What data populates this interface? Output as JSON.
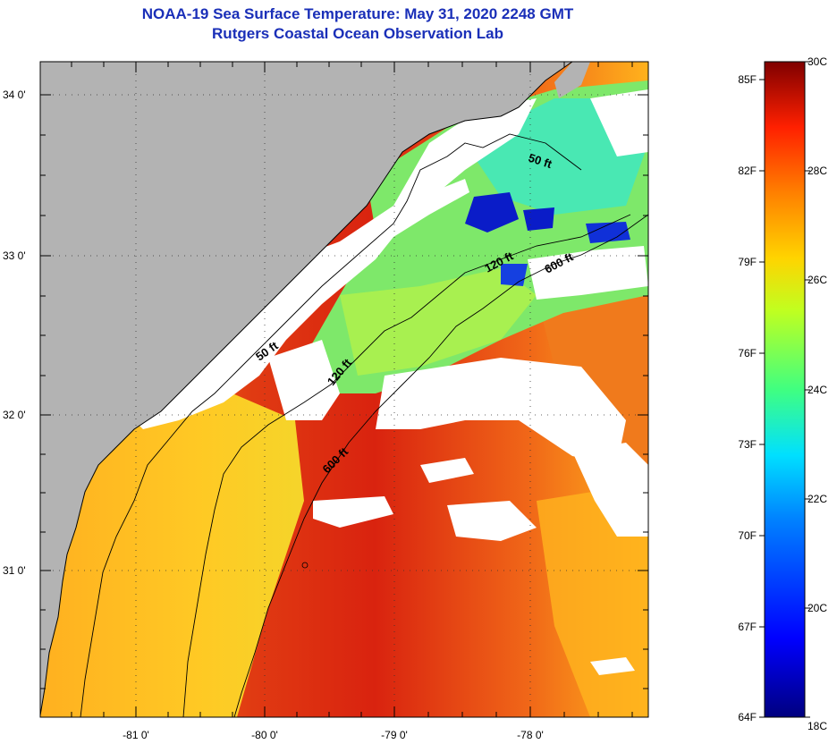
{
  "title": "NOAA-19 Sea Surface Temperature:  May 31, 2020 2248 GMT",
  "subtitle": "Rutgers Coastal Ocean Observation Lab",
  "lat_labels": [
    "34 0'",
    "33 0'",
    "32 0'",
    "31 0'"
  ],
  "lon_labels": [
    "-81 0'",
    "-80 0'",
    "-79 0'",
    "-78 0'"
  ],
  "contour_labels": [
    "50 ft",
    "120 ft",
    "600 ft",
    "50 ft",
    "120 ft",
    "600 ft"
  ],
  "colorbar": {
    "fahrenheit": [
      "85F",
      "82F",
      "79F",
      "76F",
      "73F",
      "70F",
      "67F",
      "64F"
    ],
    "celsius": [
      "30C",
      "28C",
      "26C",
      "24C",
      "22C",
      "20C",
      "18C"
    ]
  },
  "colors": {
    "title": "#1a2fb8",
    "land": "#b3b3b3",
    "cloud": "#ffffff",
    "warm": "#d9230f",
    "cool": "#6fe06a"
  }
}
